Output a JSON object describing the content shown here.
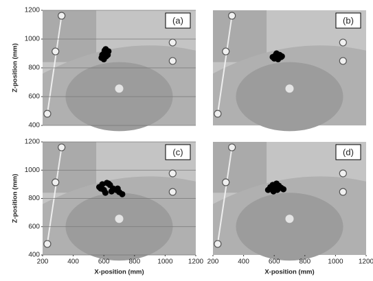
{
  "chart_data": [
    {
      "type": "scatter",
      "panel_label": "(a)",
      "ylabel": "Z-position (mm)",
      "xlim": [
        200,
        1200
      ],
      "ylim": [
        400,
        1200
      ],
      "yticks": [
        400,
        600,
        800,
        1000,
        1200
      ],
      "grid": true,
      "series": [
        {
          "color": "#f0f0f0",
          "x": [
            324,
            284,
            231,
            1049,
            1049
          ],
          "y": [
            1162,
            914,
            481,
            976,
            848
          ]
        },
        {
          "color": "#000000",
          "x": [
            585,
            595,
            600,
            605,
            612,
            620,
            625,
            600,
            590,
            615,
            608,
            630
          ],
          "y": [
            870,
            880,
            900,
            920,
            930,
            910,
            890,
            860,
            890,
            880,
            905,
            915
          ]
        }
      ]
    },
    {
      "type": "scatter",
      "panel_label": "(b)",
      "xlim": [
        200,
        1200
      ],
      "ylim": [
        400,
        1200
      ],
      "series": [
        {
          "color": "#f0f0f0",
          "x": [
            324,
            284,
            231,
            1049,
            1049
          ],
          "y": [
            1162,
            914,
            481,
            976,
            848
          ]
        },
        {
          "color": "#000000",
          "x": [
            590,
            600,
            610,
            620,
            630,
            640,
            650,
            615,
            605,
            625,
            635,
            645
          ],
          "y": [
            875,
            865,
            890,
            895,
            870,
            885,
            880,
            900,
            880,
            860,
            890,
            875
          ]
        }
      ]
    },
    {
      "type": "scatter",
      "panel_label": "(c)",
      "ylabel": "Z-position (mm)",
      "xlabel": "X-position (mm)",
      "xlim": [
        200,
        1200
      ],
      "ylim": [
        400,
        1200
      ],
      "xticks": [
        200,
        400,
        600,
        800,
        1000,
        1200
      ],
      "yticks": [
        400,
        600,
        800,
        1000,
        1200
      ],
      "grid": true,
      "series": [
        {
          "color": "#f0f0f0",
          "x": [
            324,
            284,
            231,
            1049,
            1049
          ],
          "y": [
            1161,
            914,
            478,
            977,
            846
          ]
        },
        {
          "color": "#000000",
          "x": [
            570,
            590,
            600,
            620,
            640,
            660,
            680,
            700,
            720,
            610,
            650,
            630,
            690,
            580
          ],
          "y": [
            880,
            900,
            860,
            910,
            895,
            870,
            860,
            845,
            830,
            840,
            850,
            905,
            870,
            870
          ]
        }
      ]
    },
    {
      "type": "scatter",
      "panel_label": "(d)",
      "xlabel": "X-position (mm)",
      "xlim": [
        200,
        1200
      ],
      "ylim": [
        400,
        1200
      ],
      "xticks": [
        200,
        400,
        600,
        800,
        1000,
        1200
      ],
      "series": [
        {
          "color": "#f0f0f0",
          "x": [
            324,
            284,
            231,
            1049,
            1049
          ],
          "y": [
            1161,
            914,
            478,
            977,
            846
          ]
        },
        {
          "color": "#000000",
          "x": [
            560,
            575,
            590,
            600,
            615,
            630,
            645,
            660,
            595,
            620,
            610,
            580
          ],
          "y": [
            860,
            880,
            895,
            870,
            905,
            890,
            875,
            865,
            850,
            860,
            885,
            870
          ]
        }
      ]
    }
  ]
}
